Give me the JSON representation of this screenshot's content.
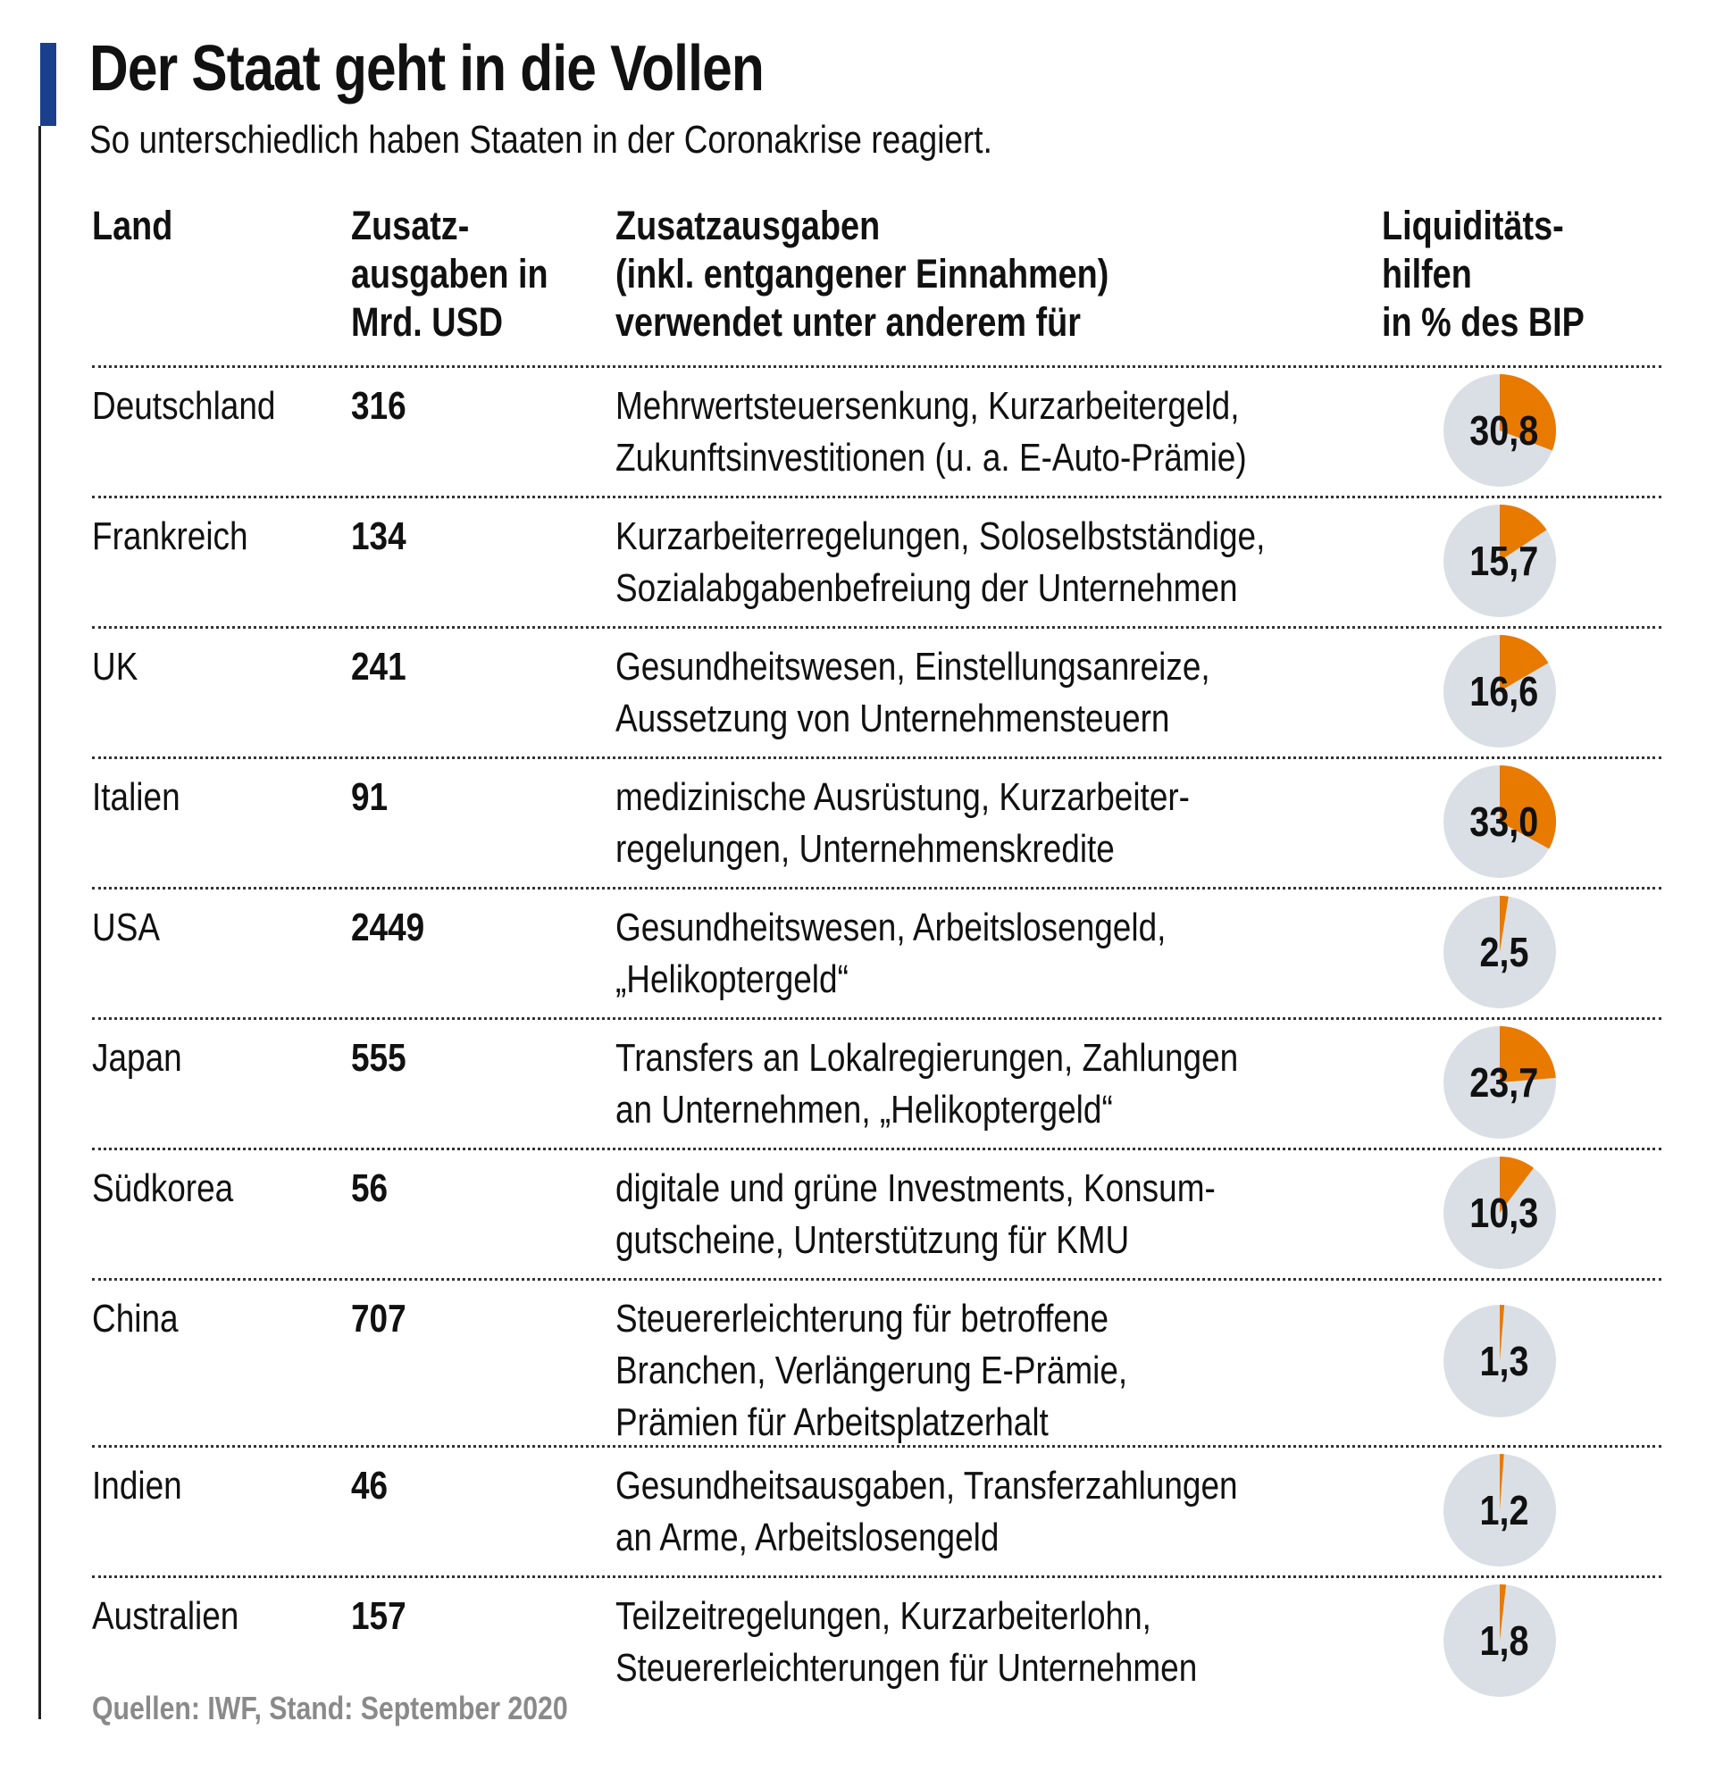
{
  "title": "Der Staat geht in die Vollen",
  "subtitle": "So unterschiedlich haben Staaten in der Coronakrise reagiert.",
  "headers": {
    "land": [
      "Land"
    ],
    "value": [
      "Zusatz-",
      "ausgaben in",
      "Mrd. USD"
    ],
    "desc": [
      "Zusatzausgaben",
      "(inkl. entgangener Einnahmen)",
      "verwendet unter anderem für"
    ],
    "pie": [
      "Liquiditäts-",
      "hilfen",
      "in % des BIP"
    ]
  },
  "footer": "Quellen: IWF, Stand: September 2020",
  "colors": {
    "accent": "#1a3f8c",
    "pie_fill": "#e87a00",
    "pie_bg": "#dadfe5"
  },
  "chart_data": {
    "type": "table",
    "columns": [
      "Land",
      "Zusatzausgaben in Mrd. USD",
      "Zusatzausgaben (inkl. entgangener Einnahmen) verwendet unter anderem für",
      "Liquiditätshilfen in % des BIP"
    ],
    "rows": [
      {
        "land": "Deutschland",
        "value": "316",
        "desc": [
          "Mehrwertsteuersenkung, Kurzarbeitergeld,",
          "Zukunftsinvestitionen (u. a. E-Auto-Prämie)"
        ],
        "pct": 30.8,
        "pct_label": "30,8"
      },
      {
        "land": "Frankreich",
        "value": "134",
        "desc": [
          "Kurzarbeiterregelungen, Soloselbstständige,",
          "Sozialabgabenbefreiung der Unternehmen"
        ],
        "pct": 15.7,
        "pct_label": "15,7"
      },
      {
        "land": "UK",
        "value": "241",
        "desc": [
          "Gesundheitswesen, Einstellungsanreize,",
          "Aussetzung von Unternehmensteuern"
        ],
        "pct": 16.6,
        "pct_label": "16,6"
      },
      {
        "land": "Italien",
        "value": "91",
        "desc": [
          "medizinische Ausrüstung, Kurzarbeiter-",
          "regelungen, Unternehmenskredite"
        ],
        "pct": 33.0,
        "pct_label": "33,0"
      },
      {
        "land": "USA",
        "value": "2449",
        "desc": [
          "Gesundheitswesen, Arbeitslosengeld,",
          "„Helikoptergeld“"
        ],
        "pct": 2.5,
        "pct_label": "2,5"
      },
      {
        "land": "Japan",
        "value": "555",
        "desc": [
          "Transfers an Lokalregierungen, Zahlungen",
          "an Unternehmen, „Helikoptergeld“"
        ],
        "pct": 23.7,
        "pct_label": "23,7"
      },
      {
        "land": "Südkorea",
        "value": "56",
        "desc": [
          "digitale und grüne Investments, Konsum-",
          "gutscheine, Unterstützung für KMU"
        ],
        "pct": 10.3,
        "pct_label": "10,3"
      },
      {
        "land": "China",
        "value": "707",
        "desc": [
          "Steuererleichterung für betroffene",
          "Branchen, Verlängerung E-Prämie,",
          "Prämien für Arbeitsplatzerhalt"
        ],
        "pct": 1.3,
        "pct_label": "1,3"
      },
      {
        "land": "Indien",
        "value": "46",
        "desc": [
          "Gesundheitsausgaben, Transferzahlungen",
          "an Arme, Arbeitslosengeld"
        ],
        "pct": 1.2,
        "pct_label": "1,2"
      },
      {
        "land": "Australien",
        "value": "157",
        "desc": [
          "Teilzeitregelungen, Kurzarbeiterlohn,",
          "Steuererleichterungen für Unternehmen"
        ],
        "pct": 1.8,
        "pct_label": "1,8"
      }
    ]
  }
}
